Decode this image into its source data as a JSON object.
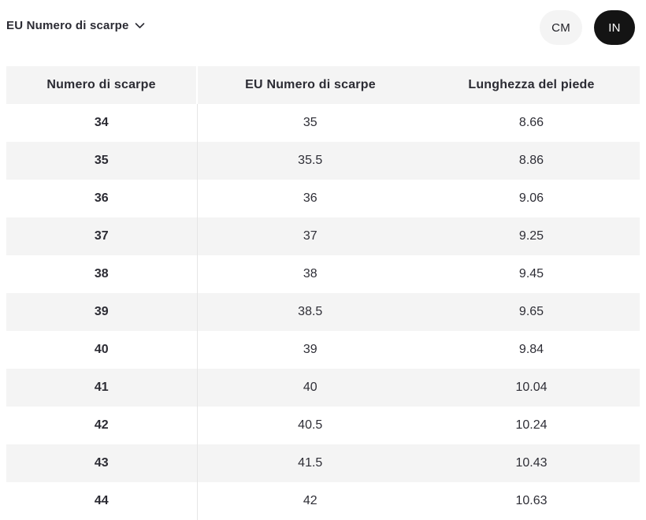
{
  "unit_selector": {
    "label": "EU Numero di scarpe"
  },
  "unit_toggle": {
    "selected": "IN",
    "options": [
      {
        "label": "CM",
        "active": false
      },
      {
        "label": "IN",
        "active": true
      }
    ]
  },
  "table": {
    "columns": [
      "Numero di scarpe",
      "EU Numero di scarpe",
      "Lunghezza del piede"
    ],
    "rows": [
      [
        "34",
        "35",
        "8.66"
      ],
      [
        "35",
        "35.5",
        "8.86"
      ],
      [
        "36",
        "36",
        "9.06"
      ],
      [
        "37",
        "37",
        "9.25"
      ],
      [
        "38",
        "38",
        "9.45"
      ],
      [
        "39",
        "38.5",
        "9.65"
      ],
      [
        "40",
        "39",
        "9.84"
      ],
      [
        "41",
        "40",
        "10.04"
      ],
      [
        "42",
        "40.5",
        "10.24"
      ],
      [
        "43",
        "41.5",
        "10.43"
      ],
      [
        "44",
        "42",
        "10.63"
      ]
    ]
  },
  "colors": {
    "text": "#2b2b33",
    "row_alt": "#f4f4f4",
    "toggle_active_bg": "#141414",
    "toggle_active_text": "#ffffff",
    "divider": "#e5e5e5"
  }
}
